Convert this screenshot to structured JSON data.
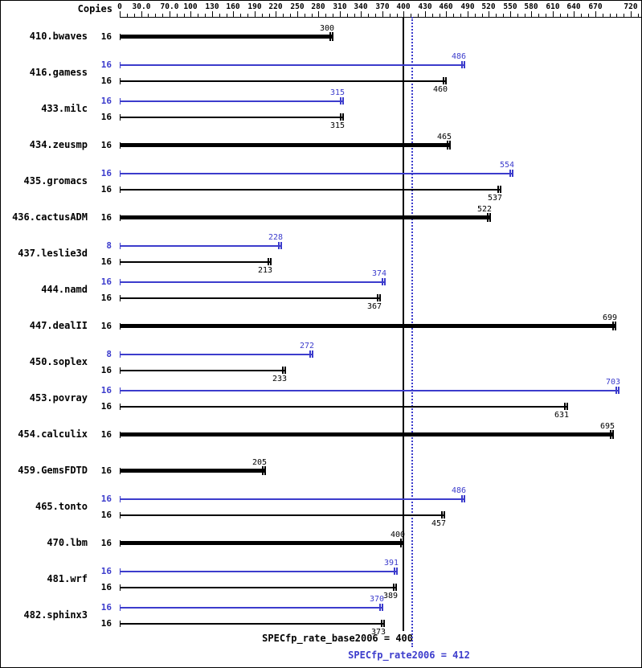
{
  "chart_data": {
    "type": "bar",
    "orientation": "horizontal",
    "copies_header": "Copies",
    "axis": {
      "min": 0,
      "max": 720,
      "major_ticks": [
        0,
        30,
        70,
        100,
        130,
        160,
        190,
        220,
        250,
        280,
        310,
        340,
        370,
        400,
        430,
        460,
        490,
        520,
        550,
        580,
        610,
        640,
        670,
        720
      ],
      "major_tick_labels": [
        "0",
        "30.0",
        "70.0",
        "100",
        "130",
        "160",
        "190",
        "220",
        "250",
        "280",
        "310",
        "340",
        "370",
        "400",
        "430",
        "460",
        "490",
        "520",
        "550",
        "580",
        "610",
        "640",
        "670",
        "720"
      ],
      "minor_tick_step": 10
    },
    "series_colors": {
      "base": "#000000",
      "peak": "#3c3ccc"
    },
    "benchmarks": [
      {
        "name": "410.bwaves",
        "bars": [
          {
            "kind": "base",
            "copies": "16",
            "value": 300,
            "bold": true
          }
        ]
      },
      {
        "name": "416.gamess",
        "bars": [
          {
            "kind": "peak",
            "copies": "16",
            "value": 486
          },
          {
            "kind": "base",
            "copies": "16",
            "value": 460
          }
        ]
      },
      {
        "name": "433.milc",
        "bars": [
          {
            "kind": "peak",
            "copies": "16",
            "value": 315
          },
          {
            "kind": "base",
            "copies": "16",
            "value": 315
          }
        ]
      },
      {
        "name": "434.zeusmp",
        "bars": [
          {
            "kind": "base",
            "copies": "16",
            "value": 465,
            "bold": true
          }
        ]
      },
      {
        "name": "435.gromacs",
        "bars": [
          {
            "kind": "peak",
            "copies": "16",
            "value": 554
          },
          {
            "kind": "base",
            "copies": "16",
            "value": 537
          }
        ]
      },
      {
        "name": "436.cactusADM",
        "bars": [
          {
            "kind": "base",
            "copies": "16",
            "value": 522,
            "bold": true
          }
        ]
      },
      {
        "name": "437.leslie3d",
        "bars": [
          {
            "kind": "peak",
            "copies": "8",
            "value": 228
          },
          {
            "kind": "base",
            "copies": "16",
            "value": 213
          }
        ]
      },
      {
        "name": "444.namd",
        "bars": [
          {
            "kind": "peak",
            "copies": "16",
            "value": 374
          },
          {
            "kind": "base",
            "copies": "16",
            "value": 367
          }
        ]
      },
      {
        "name": "447.dealII",
        "bars": [
          {
            "kind": "base",
            "copies": "16",
            "value": 699,
            "bold": true
          }
        ]
      },
      {
        "name": "450.soplex",
        "bars": [
          {
            "kind": "peak",
            "copies": "8",
            "value": 272
          },
          {
            "kind": "base",
            "copies": "16",
            "value": 233
          }
        ]
      },
      {
        "name": "453.povray",
        "bars": [
          {
            "kind": "peak",
            "copies": "16",
            "value": 703
          },
          {
            "kind": "base",
            "copies": "16",
            "value": 631
          }
        ]
      },
      {
        "name": "454.calculix",
        "bars": [
          {
            "kind": "base",
            "copies": "16",
            "value": 695,
            "bold": true
          }
        ]
      },
      {
        "name": "459.GemsFDTD",
        "bars": [
          {
            "kind": "base",
            "copies": "16",
            "value": 205,
            "bold": true
          }
        ]
      },
      {
        "name": "465.tonto",
        "bars": [
          {
            "kind": "peak",
            "copies": "16",
            "value": 486
          },
          {
            "kind": "base",
            "copies": "16",
            "value": 457
          }
        ]
      },
      {
        "name": "470.lbm",
        "bars": [
          {
            "kind": "base",
            "copies": "16",
            "value": 400,
            "bold": true
          }
        ]
      },
      {
        "name": "481.wrf",
        "bars": [
          {
            "kind": "peak",
            "copies": "16",
            "value": 391
          },
          {
            "kind": "base",
            "copies": "16",
            "value": 389
          }
        ]
      },
      {
        "name": "482.sphinx3",
        "bars": [
          {
            "kind": "peak",
            "copies": "16",
            "value": 370
          },
          {
            "kind": "base",
            "copies": "16",
            "value": 373
          }
        ]
      }
    ],
    "reference_lines": [
      {
        "metric": "SPECfp_rate_base2006",
        "label": "SPECfp_rate_base2006 = 400",
        "value": 400,
        "style": "solid",
        "color": "#000000"
      },
      {
        "metric": "SPECfp_rate2006",
        "label": "SPECfp_rate2006 = 412",
        "value": 412,
        "style": "dotted",
        "color": "#3c3ccc"
      }
    ]
  }
}
